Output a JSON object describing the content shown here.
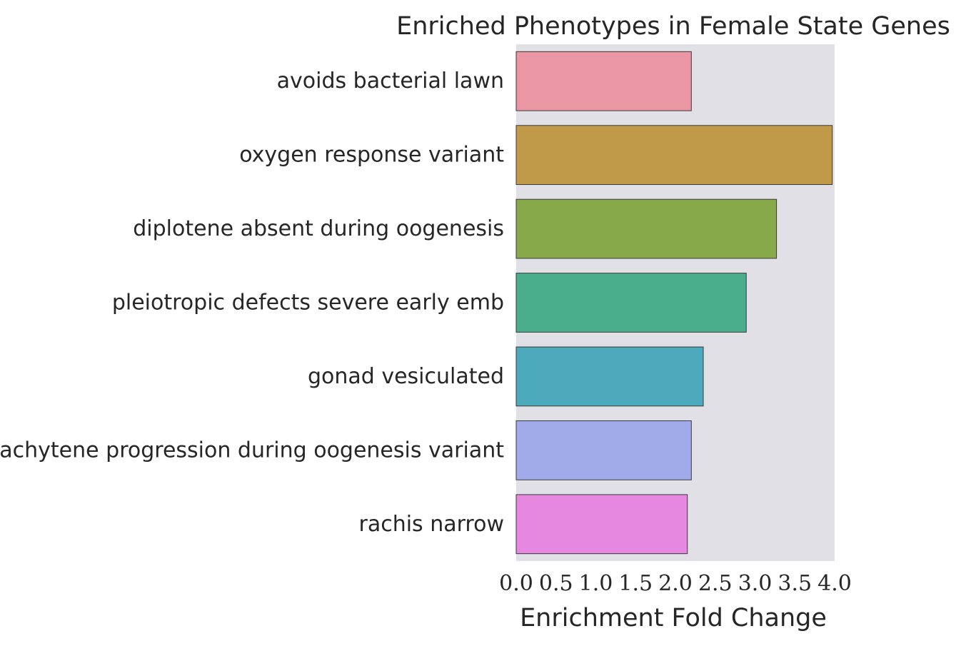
{
  "chart_data": {
    "type": "bar",
    "orientation": "horizontal",
    "title": "Enriched Phenotypes in Female State Genes",
    "xlabel": "Enrichment Fold Change",
    "ylabel": "",
    "xlim": [
      0,
      4.0
    ],
    "x_ticks": [
      "0.0",
      "0.5",
      "1.0",
      "1.5",
      "2.0",
      "2.5",
      "3.0",
      "3.5",
      "4.0"
    ],
    "grid": false,
    "categories": [
      "avoids bacterial lawn",
      "oxygen response variant",
      "diplotene absent during oogenesis",
      "pleiotropic defects severe early emb",
      "gonad vesiculated",
      "pachytene progression during oogenesis variant",
      "rachis narrow"
    ],
    "values": [
      2.2,
      3.97,
      3.27,
      2.89,
      2.35,
      2.2,
      2.15
    ],
    "colors": [
      "#ea96a3",
      "#c09949",
      "#88a94a",
      "#4aae8c",
      "#4daabd",
      "#a1abea",
      "#e788e0"
    ],
    "background_color": "#e1e0e7",
    "edge_color": "#3a3a3a"
  }
}
